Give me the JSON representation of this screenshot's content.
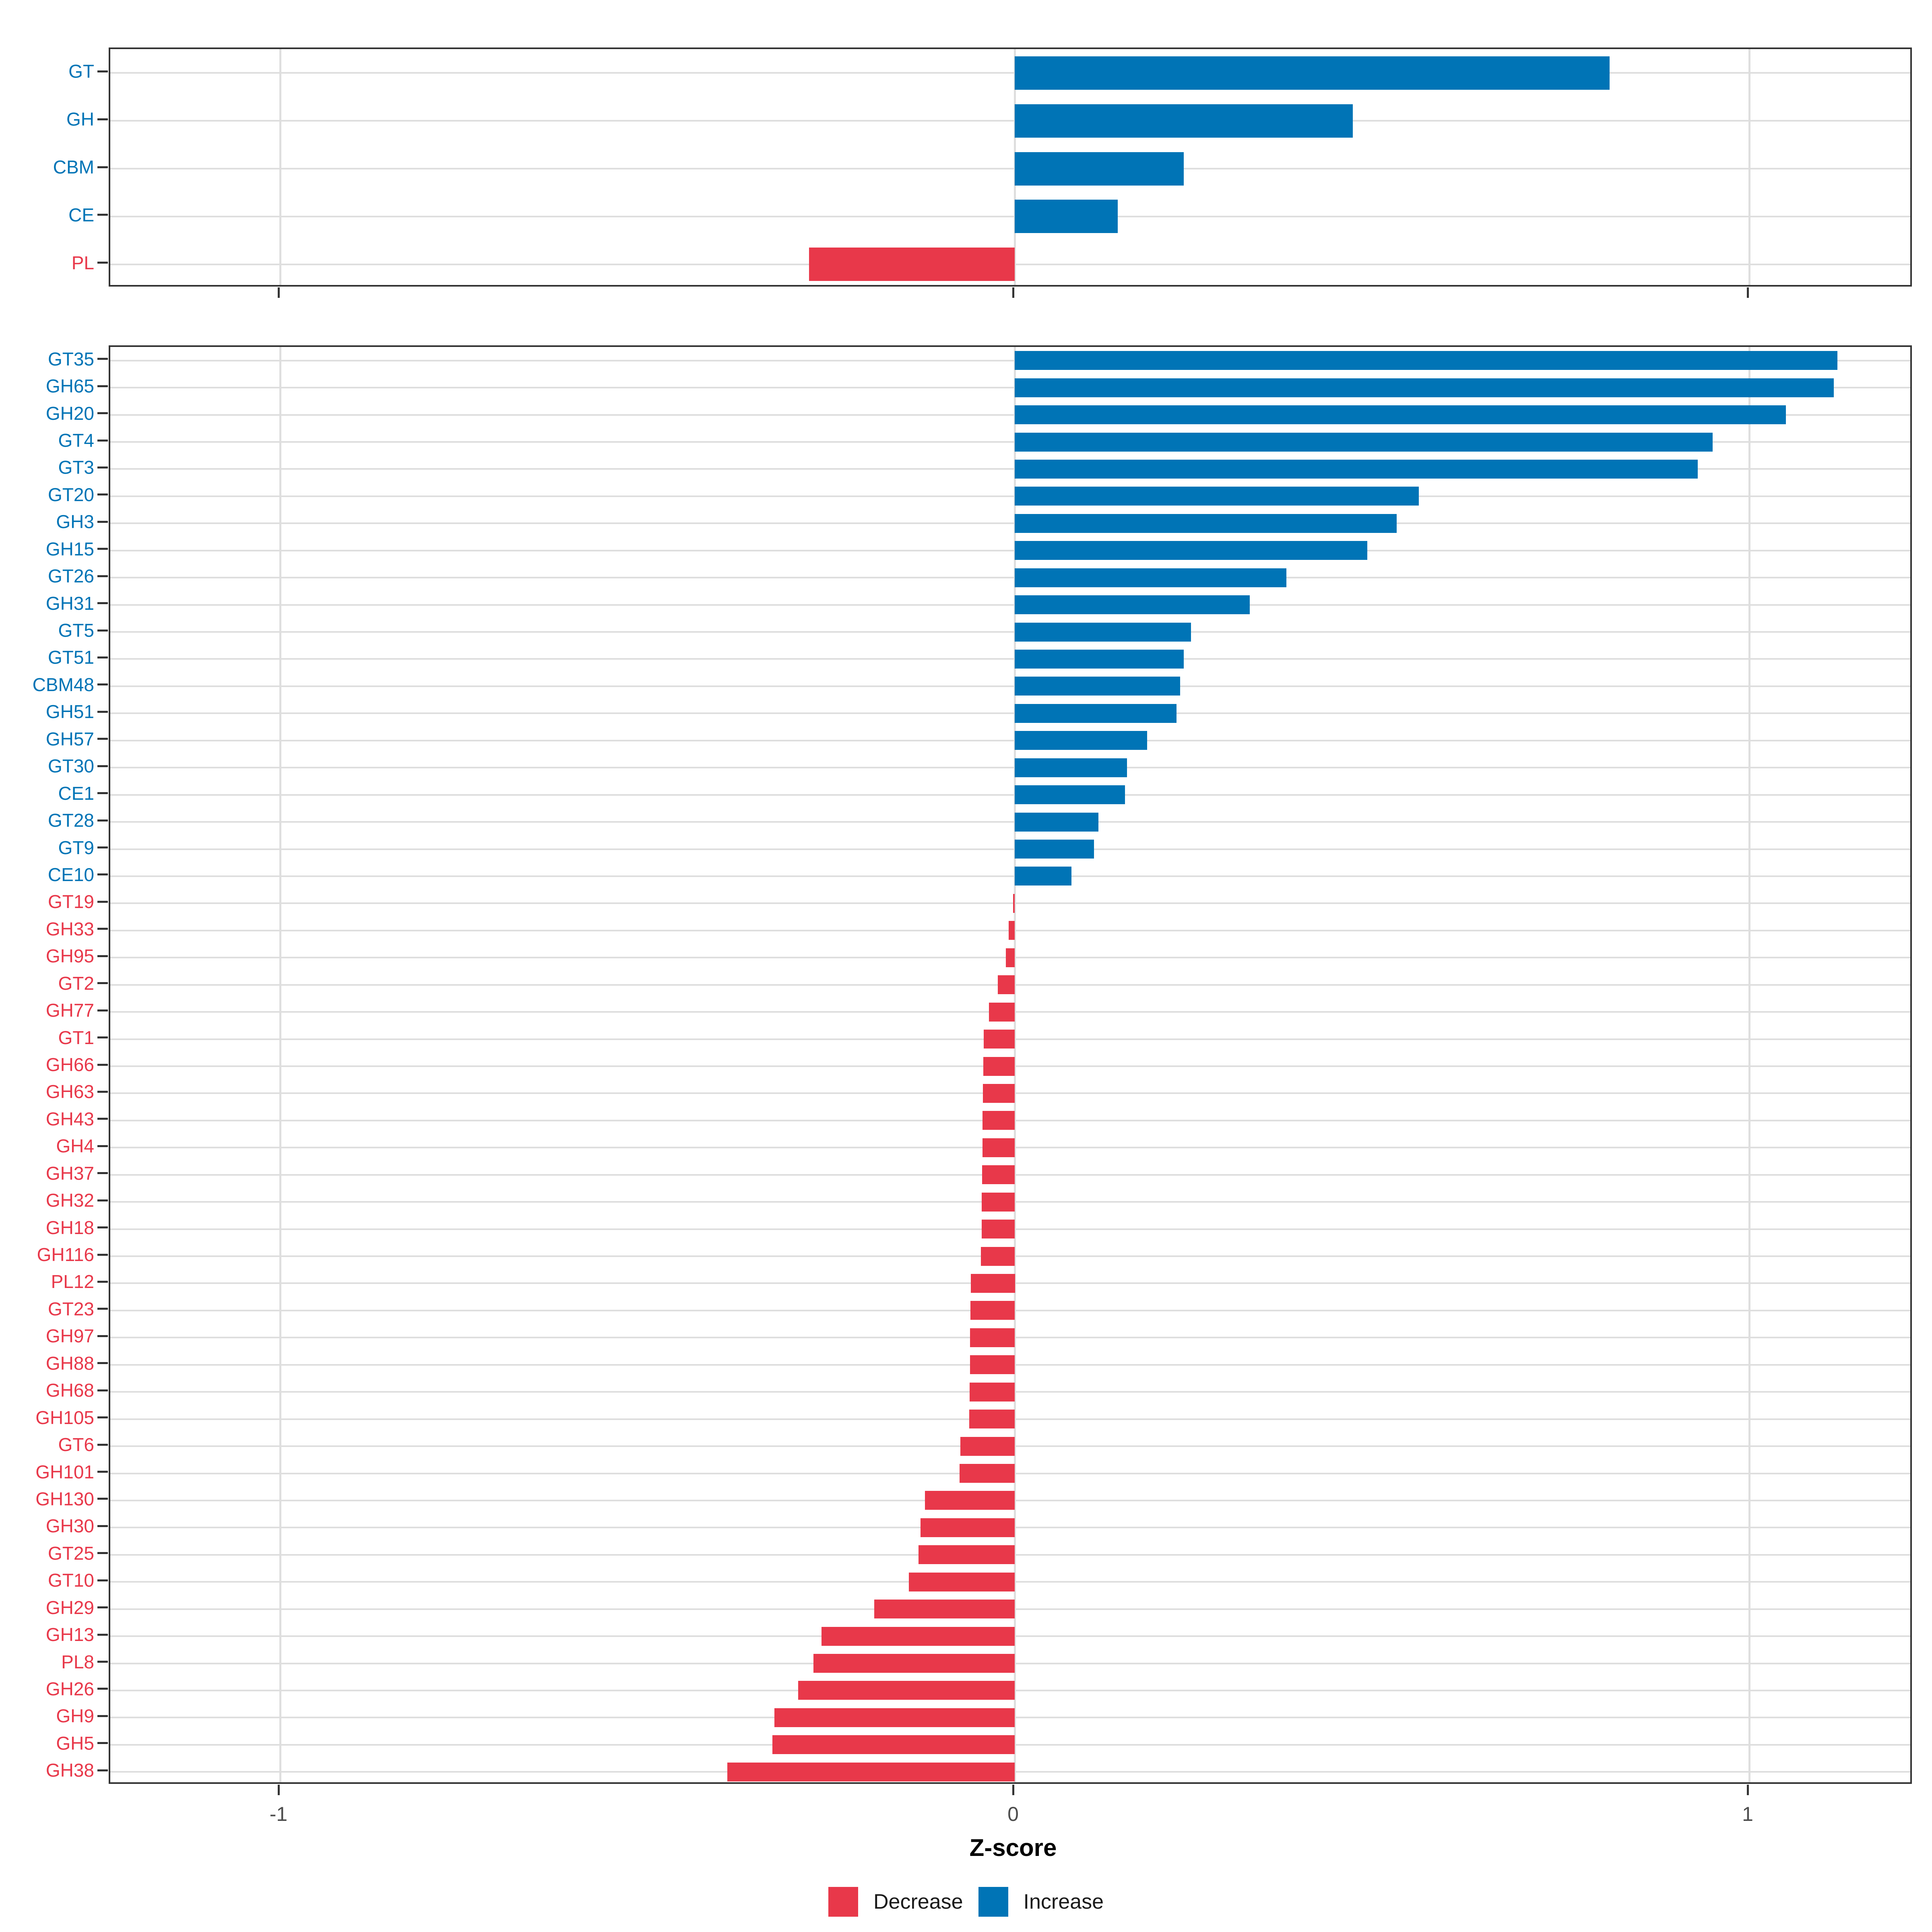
{
  "axis": {
    "title": "Z-score",
    "tick_values": [
      -1,
      0,
      1
    ],
    "tick_labels": [
      "-1",
      "0",
      "1"
    ],
    "xlim": [
      -1.23,
      1.22
    ]
  },
  "legend": {
    "decrease_label": "Decrease",
    "increase_label": "Increase"
  },
  "colors": {
    "increase": "#0074B6",
    "decrease": "#E8384A",
    "grid": "#DEDEDE",
    "panel_border": "#333333",
    "tick_mark": "#333333",
    "axis_text": "#4d4d4d",
    "title_text": "#000000",
    "background": "#ffffff"
  },
  "chart_data": [
    {
      "type": "bar",
      "orientation": "horizontal",
      "panel": "cazyme-family",
      "xlabel": "Z-score",
      "grid": true,
      "legend_position": "bottom",
      "categories": [
        "GT",
        "GH",
        "CBM",
        "CE",
        "PL"
      ],
      "values": [
        0.81,
        0.46,
        0.23,
        0.14,
        -0.28
      ]
    },
    {
      "type": "bar",
      "orientation": "horizontal",
      "panel": "cazyme-subfamily",
      "xlabel": "Z-score",
      "grid": true,
      "legend_position": "bottom",
      "categories": [
        "GT35",
        "GH65",
        "GH20",
        "GT4",
        "GT3",
        "GT20",
        "GH3",
        "GH15",
        "GT26",
        "GH31",
        "GT5",
        "GT51",
        "CBM48",
        "GH51",
        "GH57",
        "GT30",
        "CE1",
        "GT28",
        "GT9",
        "CE10",
        "GT19",
        "GH33",
        "GH95",
        "GT2",
        "GH77",
        "GT1",
        "GH66",
        "GH63",
        "GH43",
        "GH4",
        "GH37",
        "GH32",
        "GH18",
        "GH116",
        "PL12",
        "GT23",
        "GH97",
        "GH88",
        "GH68",
        "GH105",
        "GT6",
        "GH101",
        "GH130",
        "GH30",
        "GT25",
        "GT10",
        "GH29",
        "GH13",
        "PL8",
        "GH26",
        "GH9",
        "GH5",
        "GH38"
      ],
      "values": [
        1.12,
        1.115,
        1.05,
        0.95,
        0.93,
        0.55,
        0.52,
        0.48,
        0.37,
        0.32,
        0.24,
        0.23,
        0.225,
        0.22,
        0.18,
        0.153,
        0.15,
        0.114,
        0.108,
        0.077,
        -0.002,
        -0.008,
        -0.012,
        -0.023,
        -0.035,
        -0.042,
        -0.043,
        -0.0435,
        -0.044,
        -0.044,
        -0.0445,
        -0.045,
        -0.045,
        -0.046,
        -0.06,
        -0.0605,
        -0.061,
        -0.061,
        -0.0615,
        -0.062,
        -0.074,
        -0.075,
        -0.122,
        -0.128,
        -0.131,
        -0.144,
        -0.191,
        -0.263,
        -0.274,
        -0.295,
        -0.327,
        -0.33,
        -0.391
      ]
    }
  ]
}
